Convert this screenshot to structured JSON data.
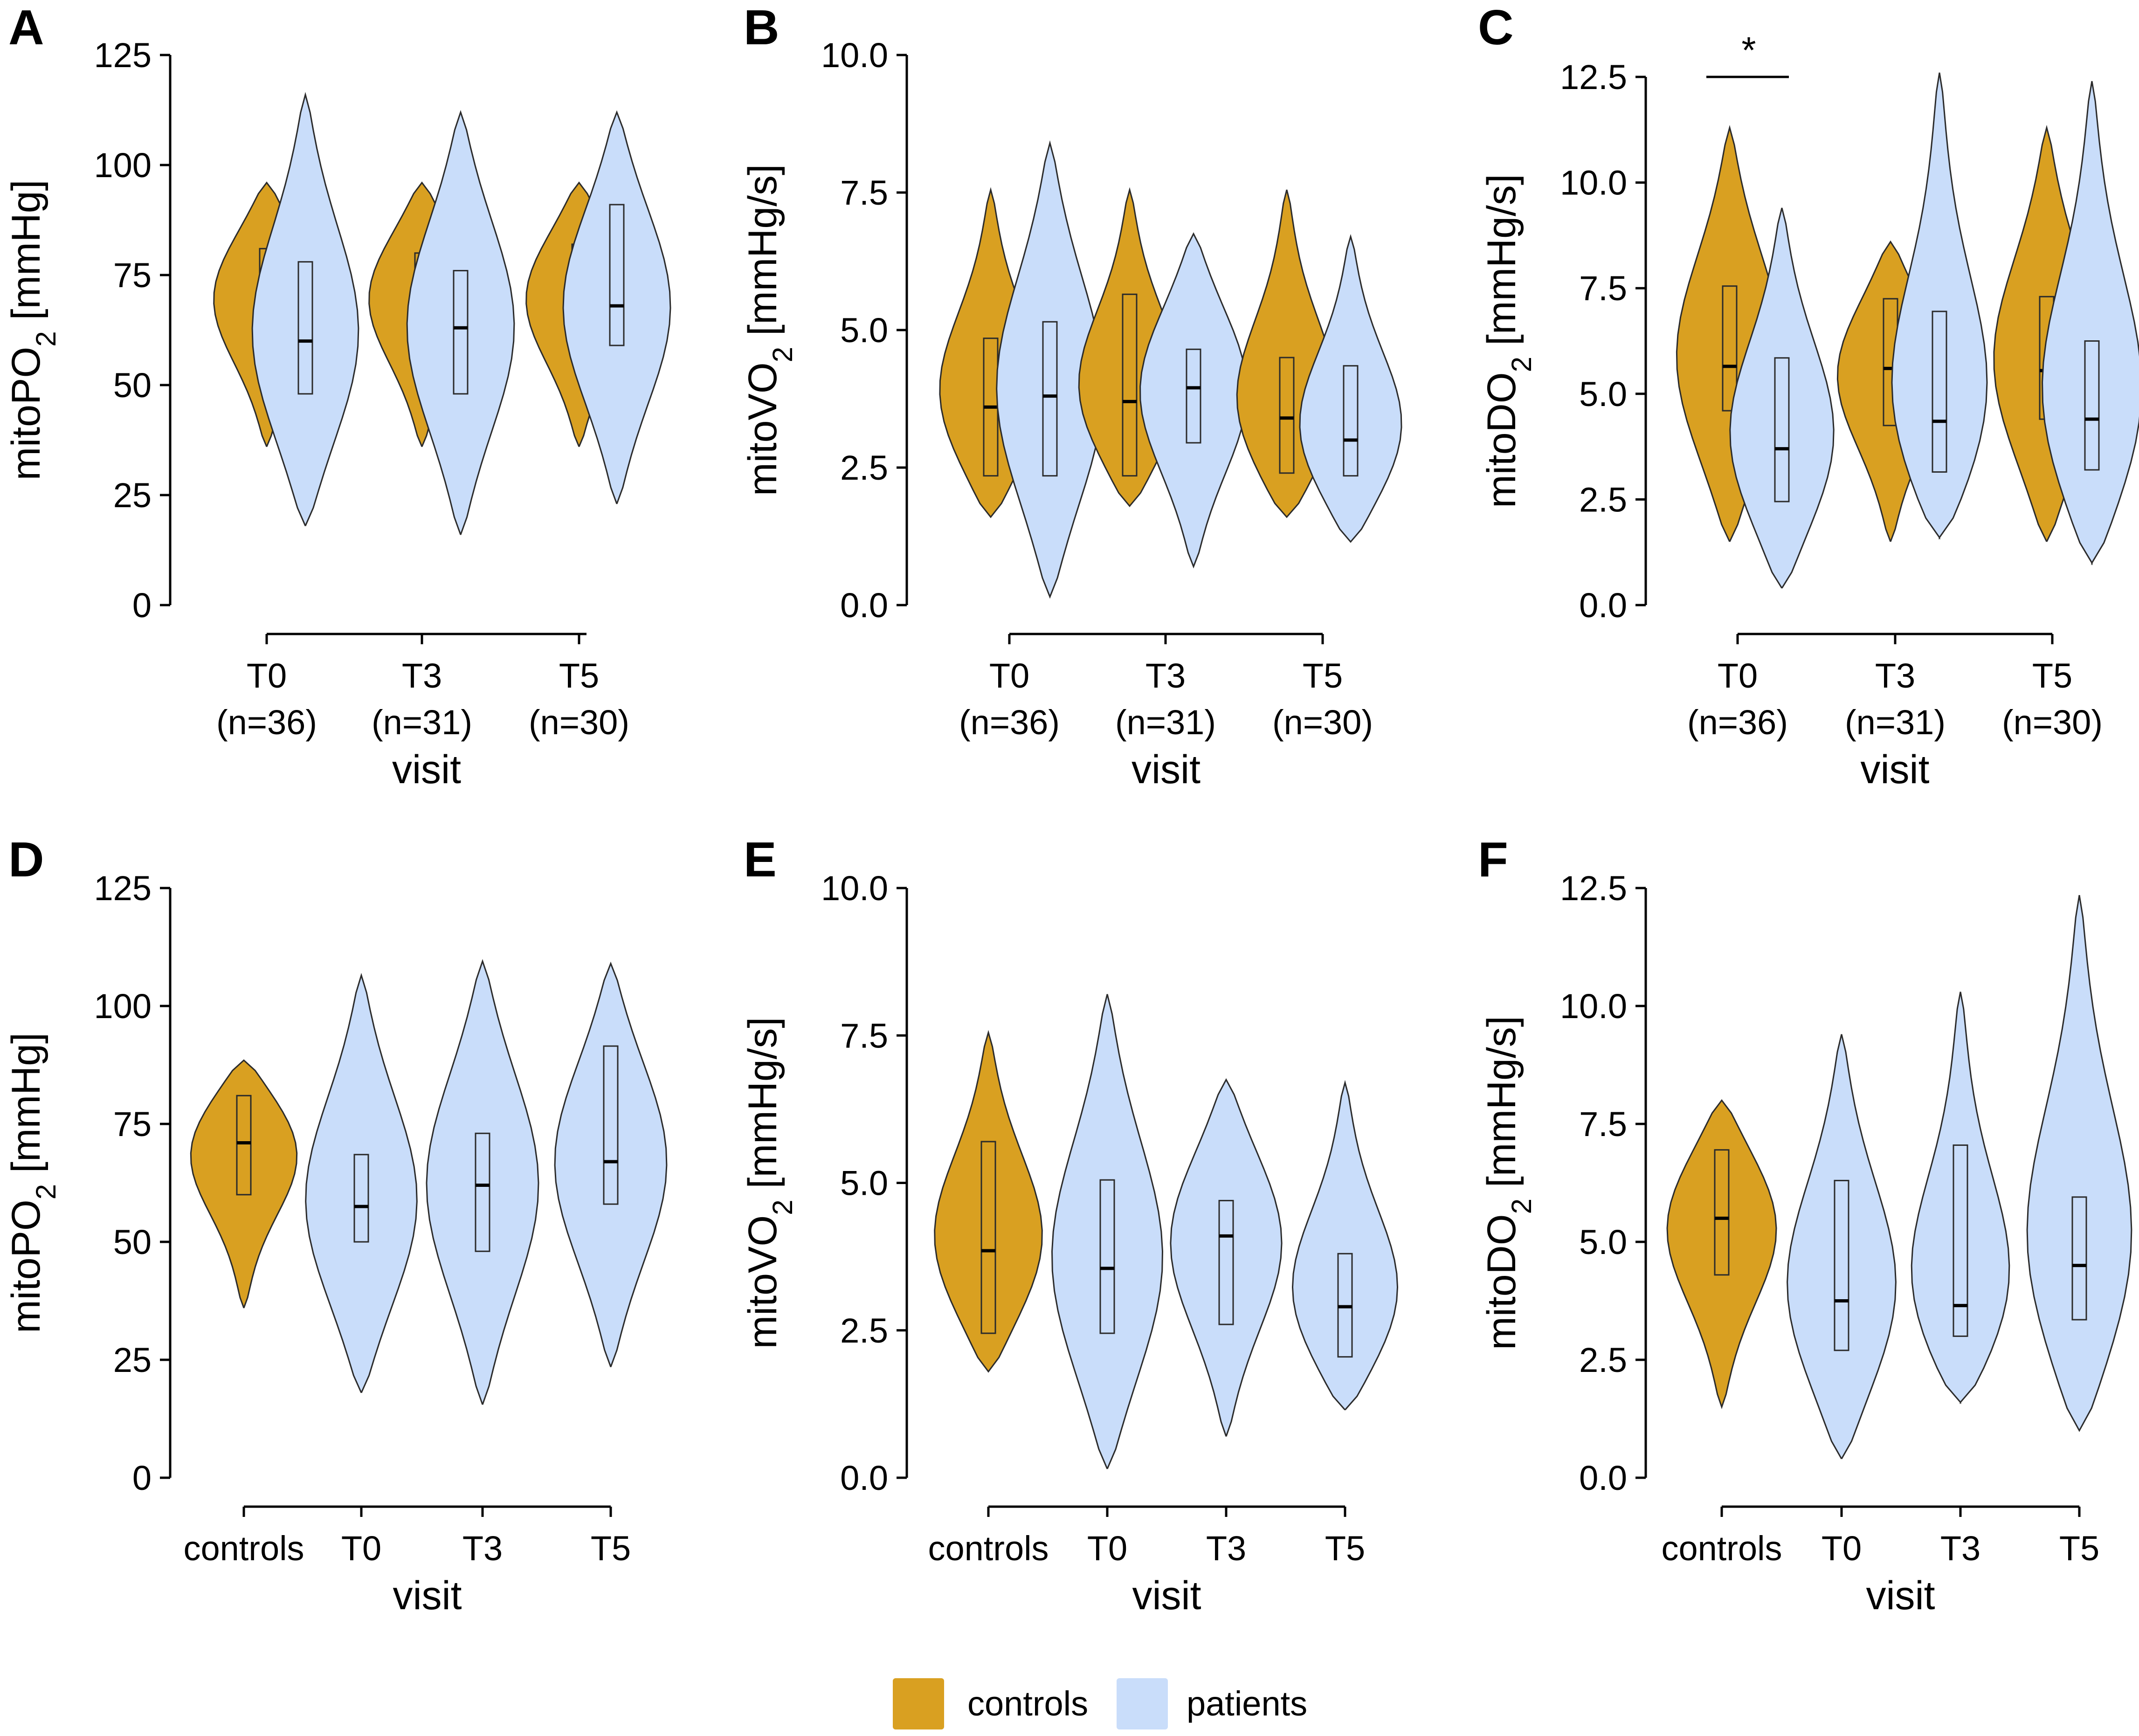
{
  "figure": {
    "legend": {
      "items": [
        {
          "label": "controls",
          "color": "#d9a021"
        },
        {
          "label": "patients",
          "color": "#c9ddfa"
        }
      ]
    }
  },
  "chart_data": [
    {
      "panel": "A",
      "type": "violin",
      "ylabel": "mitoPO",
      "ylabel_sub": "2",
      "ylabel_unit": " [mmHg]",
      "xlabel": "visit",
      "ylim": [
        0,
        125
      ],
      "yticks": [
        "0",
        "25",
        "50",
        "75",
        "100",
        "125"
      ],
      "categories": [
        "T0",
        "T3",
        "T5"
      ],
      "category_sub": [
        "(n=36)",
        "(n=31)",
        "(n=30)"
      ],
      "series": [
        {
          "name": "controls",
          "category": "T0",
          "min": 36,
          "max": 96,
          "q1": 60,
          "median": 71,
          "q3": 81
        },
        {
          "name": "patients",
          "category": "T0",
          "min": 18,
          "max": 116,
          "q1": 48,
          "median": 60,
          "q3": 78
        },
        {
          "name": "controls",
          "category": "T3",
          "min": 36,
          "max": 96,
          "q1": 60,
          "median": 71,
          "q3": 80
        },
        {
          "name": "patients",
          "category": "T3",
          "min": 16,
          "max": 112,
          "q1": 48,
          "median": 63,
          "q3": 76
        },
        {
          "name": "controls",
          "category": "T5",
          "min": 36,
          "max": 96,
          "q1": 60,
          "median": 71,
          "q3": 82
        },
        {
          "name": "patients",
          "category": "T5",
          "min": 23,
          "max": 112,
          "q1": 59,
          "median": 68,
          "q3": 91
        }
      ]
    },
    {
      "panel": "B",
      "type": "violin",
      "ylabel": "mitoVO",
      "ylabel_sub": "2",
      "ylabel_unit": " [mmHg/s]",
      "xlabel": "visit",
      "ylim": [
        0,
        10
      ],
      "yticks": [
        "0.0",
        "2.5",
        "5.0",
        "7.5",
        "10.0"
      ],
      "categories": [
        "T0",
        "T3",
        "T5"
      ],
      "category_sub": [
        "(n=36)",
        "(n=31)",
        "(n=30)"
      ],
      "series": [
        {
          "name": "controls",
          "category": "T0",
          "min": 1.6,
          "max": 7.55,
          "q1": 2.35,
          "median": 3.6,
          "q3": 4.85
        },
        {
          "name": "patients",
          "category": "T0",
          "min": 0.15,
          "max": 8.4,
          "q1": 2.35,
          "median": 3.8,
          "q3": 5.15
        },
        {
          "name": "controls",
          "category": "T3",
          "min": 1.8,
          "max": 7.55,
          "q1": 2.35,
          "median": 3.7,
          "q3": 5.65
        },
        {
          "name": "patients",
          "category": "T3",
          "min": 0.7,
          "max": 6.75,
          "q1": 2.95,
          "median": 3.95,
          "q3": 4.65
        },
        {
          "name": "controls",
          "category": "T5",
          "min": 1.6,
          "max": 7.55,
          "q1": 2.4,
          "median": 3.4,
          "q3": 4.5
        },
        {
          "name": "patients",
          "category": "T5",
          "min": 1.15,
          "max": 6.7,
          "q1": 2.35,
          "median": 3.0,
          "q3": 4.35
        }
      ]
    },
    {
      "panel": "C",
      "type": "violin",
      "ylabel": "mitoDO",
      "ylabel_sub": "2",
      "ylabel_unit": " [mmHg/s]",
      "xlabel": "visit",
      "ylim": [
        0,
        12.5
      ],
      "yticks": [
        "0.0",
        "2.5",
        "5.0",
        "7.5",
        "10.0",
        "12.5"
      ],
      "categories": [
        "T0",
        "T3",
        "T5"
      ],
      "category_sub": [
        "(n=36)",
        "(n=31)",
        "(n=30)"
      ],
      "annotation": "*",
      "series": [
        {
          "name": "controls",
          "category": "T0",
          "min": 1.5,
          "max": 11.3,
          "q1": 4.6,
          "median": 5.65,
          "q3": 7.55
        },
        {
          "name": "patients",
          "category": "T0",
          "min": 0.4,
          "max": 9.4,
          "q1": 2.45,
          "median": 3.7,
          "q3": 5.85
        },
        {
          "name": "controls",
          "category": "T3",
          "min": 1.5,
          "max": 8.6,
          "q1": 4.25,
          "median": 5.6,
          "q3": 7.25
        },
        {
          "name": "patients",
          "category": "T3",
          "min": 1.6,
          "max": 12.6,
          "q1": 3.15,
          "median": 4.35,
          "q3": 6.95
        },
        {
          "name": "controls",
          "category": "T5",
          "min": 1.5,
          "max": 11.3,
          "q1": 4.4,
          "median": 5.55,
          "q3": 7.3
        },
        {
          "name": "patients",
          "category": "T5",
          "min": 1.0,
          "max": 12.4,
          "q1": 3.2,
          "median": 4.4,
          "q3": 6.25
        }
      ]
    },
    {
      "panel": "D",
      "type": "violin",
      "ylabel": "mitoPO",
      "ylabel_sub": "2",
      "ylabel_unit": " [mmHg]",
      "xlabel": "visit",
      "ylim": [
        0,
        125
      ],
      "yticks": [
        "0",
        "25",
        "50",
        "75",
        "100",
        "125"
      ],
      "categories": [
        "controls",
        "T0",
        "T3",
        "T5"
      ],
      "series": [
        {
          "name": "controls",
          "category": "controls",
          "min": 36,
          "max": 88.5,
          "q1": 60,
          "median": 71,
          "q3": 81
        },
        {
          "name": "patients",
          "category": "T0",
          "min": 18,
          "max": 106.5,
          "q1": 50,
          "median": 57.5,
          "q3": 68.5
        },
        {
          "name": "patients",
          "category": "T3",
          "min": 15.5,
          "max": 109.5,
          "q1": 48,
          "median": 62,
          "q3": 73
        },
        {
          "name": "patients",
          "category": "T5",
          "min": 23.5,
          "max": 109,
          "q1": 58,
          "median": 67,
          "q3": 91.5
        }
      ]
    },
    {
      "panel": "E",
      "type": "violin",
      "ylabel": "mitoVO",
      "ylabel_sub": "2",
      "ylabel_unit": " [mmHg/s]",
      "xlabel": "visit",
      "ylim": [
        0,
        10
      ],
      "yticks": [
        "0.0",
        "2.5",
        "5.0",
        "7.5",
        "10.0"
      ],
      "categories": [
        "controls",
        "T0",
        "T3",
        "T5"
      ],
      "series": [
        {
          "name": "controls",
          "category": "controls",
          "min": 1.8,
          "max": 7.55,
          "q1": 2.45,
          "median": 3.85,
          "q3": 5.7
        },
        {
          "name": "patients",
          "category": "T0",
          "min": 0.15,
          "max": 8.2,
          "q1": 2.45,
          "median": 3.55,
          "q3": 5.05
        },
        {
          "name": "patients",
          "category": "T3",
          "min": 0.7,
          "max": 6.75,
          "q1": 2.6,
          "median": 4.1,
          "q3": 4.7
        },
        {
          "name": "patients",
          "category": "T5",
          "min": 1.15,
          "max": 6.7,
          "q1": 2.05,
          "median": 2.9,
          "q3": 3.8
        }
      ]
    },
    {
      "panel": "F",
      "type": "violin",
      "ylabel": "mitoDO",
      "ylabel_sub": "2",
      "ylabel_unit": " [mmHg/s]",
      "xlabel": "visit",
      "ylim": [
        0,
        12.5
      ],
      "yticks": [
        "0.0",
        "2.5",
        "5.0",
        "7.5",
        "10.0",
        "12.5"
      ],
      "categories": [
        "controls",
        "T0",
        "T3",
        "T5"
      ],
      "series": [
        {
          "name": "controls",
          "category": "controls",
          "min": 1.5,
          "max": 8.0,
          "q1": 4.3,
          "median": 5.5,
          "q3": 6.95
        },
        {
          "name": "patients",
          "category": "T0",
          "min": 0.4,
          "max": 9.4,
          "q1": 2.7,
          "median": 3.75,
          "q3": 6.3
        },
        {
          "name": "patients",
          "category": "T3",
          "min": 1.6,
          "max": 10.3,
          "q1": 3.0,
          "median": 3.65,
          "q3": 7.05
        },
        {
          "name": "patients",
          "category": "T5",
          "min": 1.0,
          "max": 12.35,
          "q1": 3.35,
          "median": 4.5,
          "q3": 5.95
        }
      ]
    }
  ]
}
